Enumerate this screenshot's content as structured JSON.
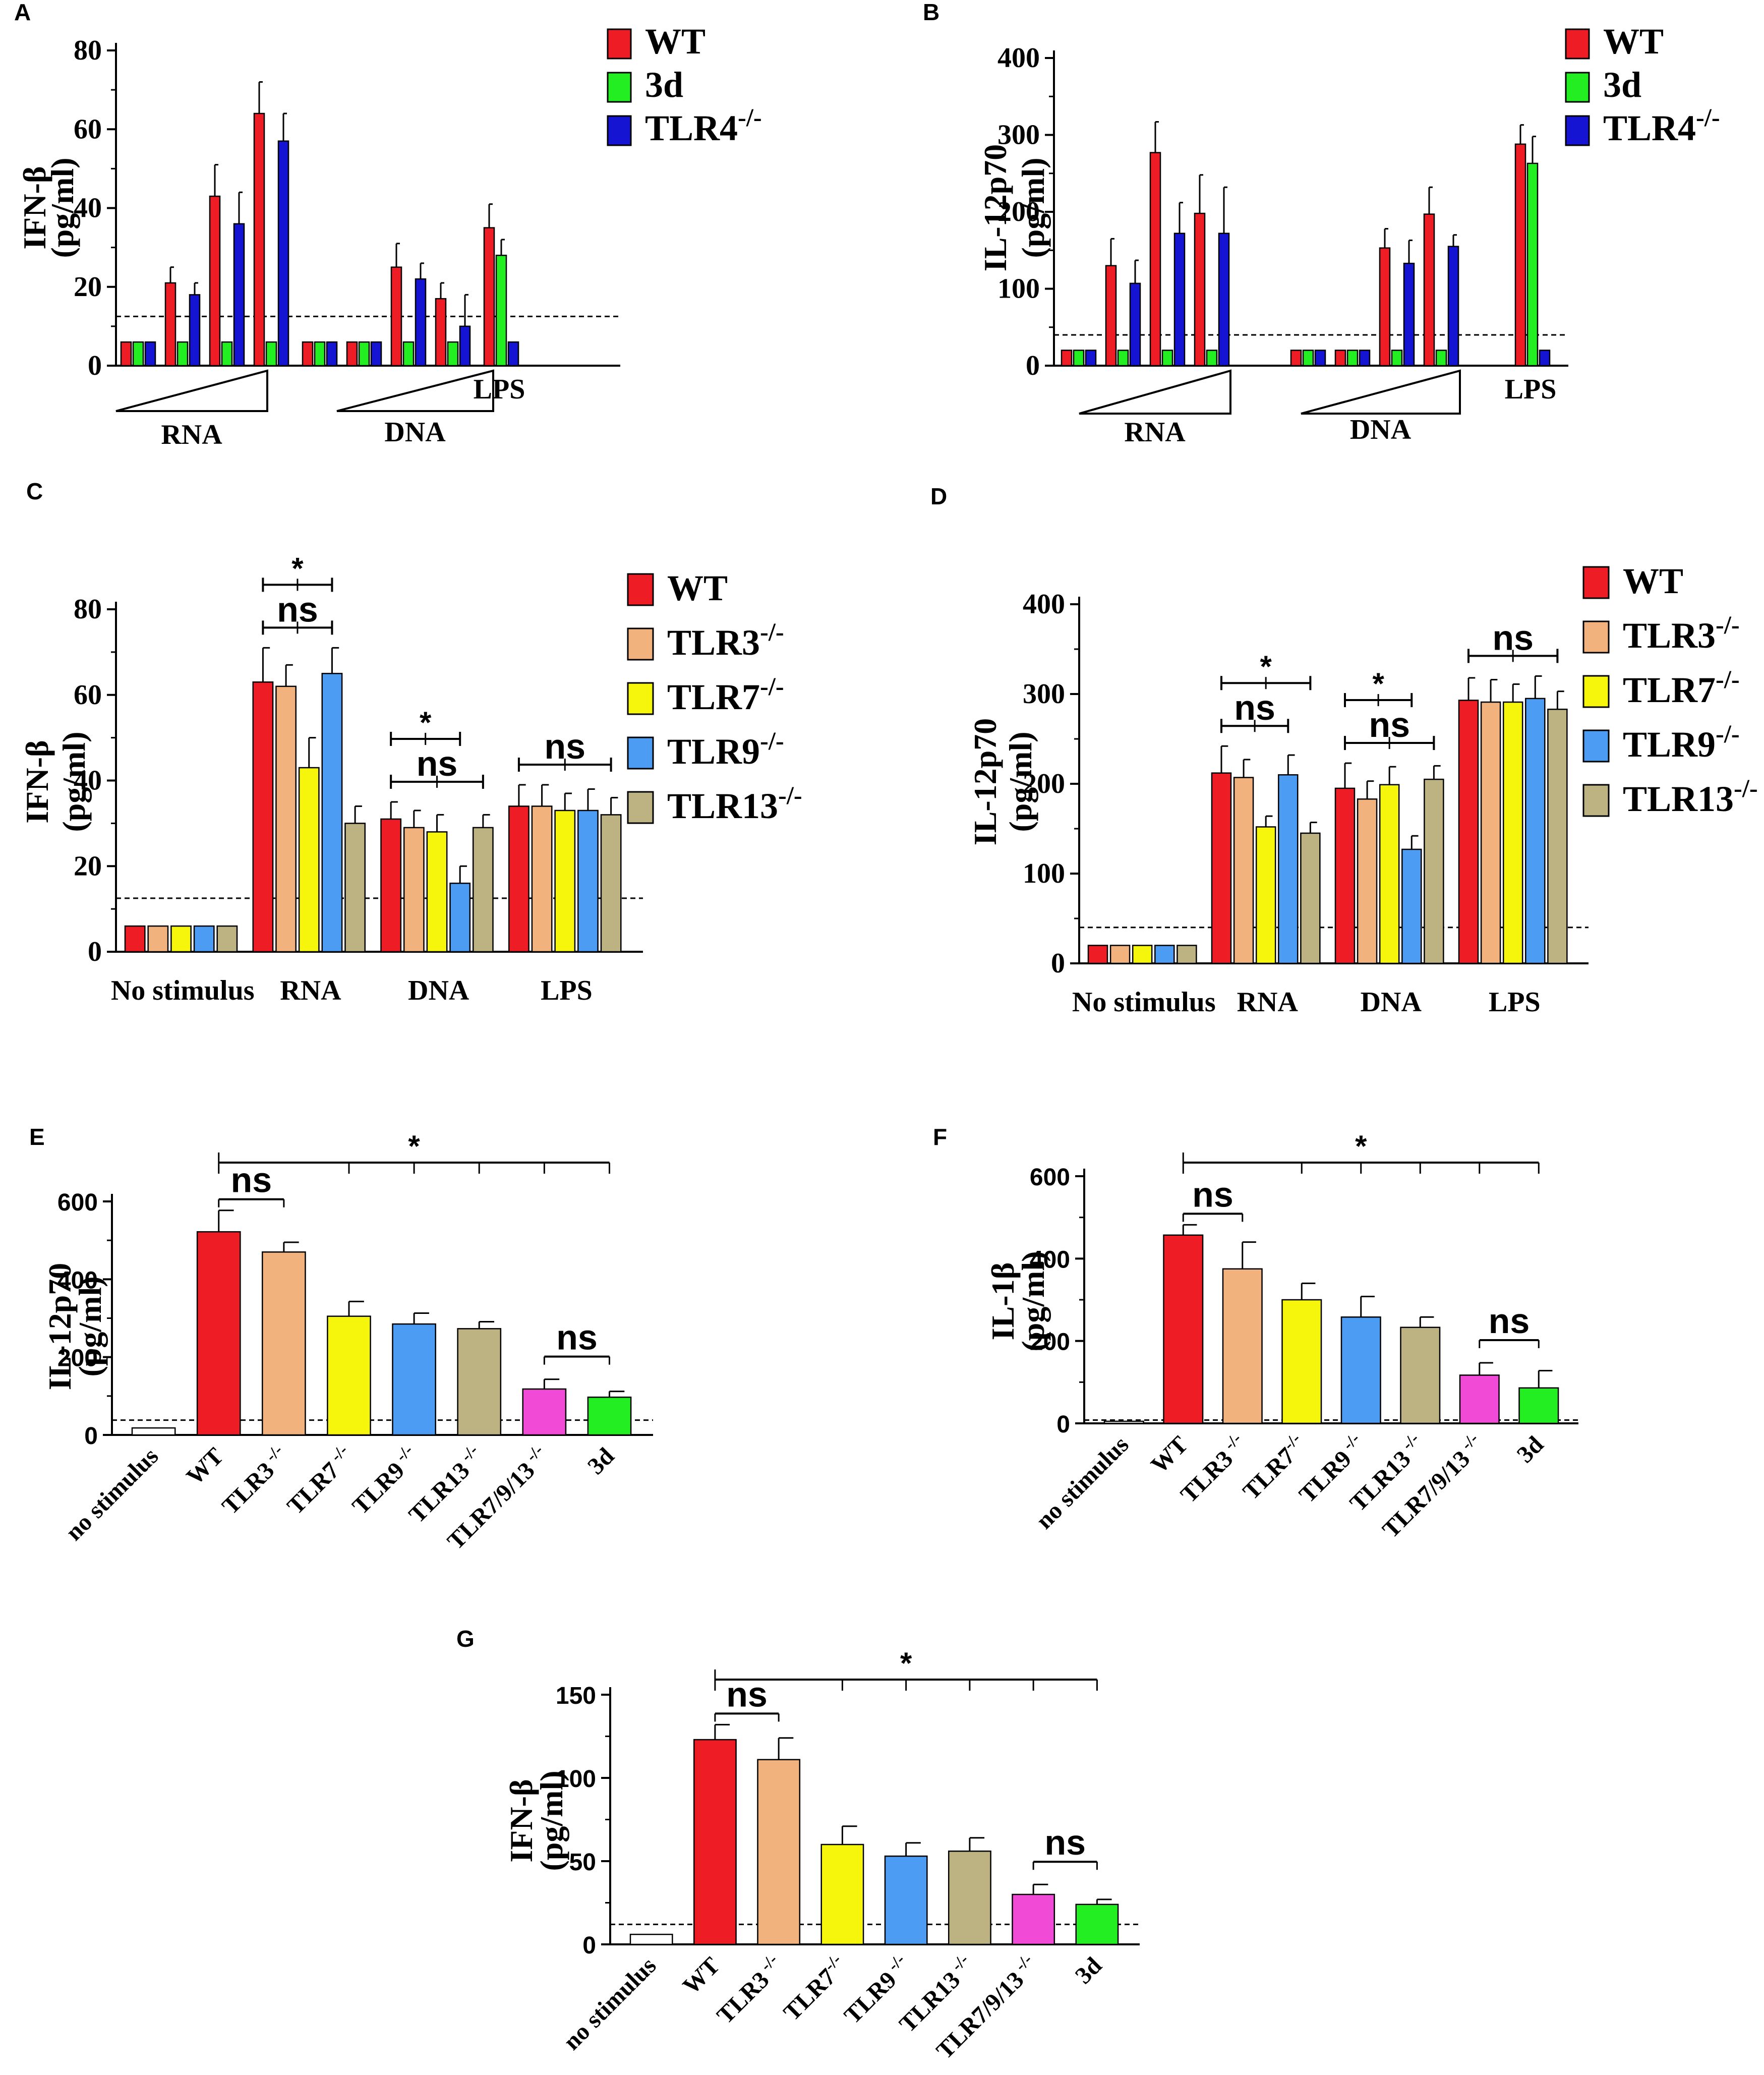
{
  "chart_data": [
    {
      "panel": "A",
      "type": "bar",
      "ylabel": [
        "IFN-β",
        "(pg/ml)"
      ],
      "ylim": [
        0,
        80
      ],
      "yticks": [
        0,
        20,
        40,
        60,
        80
      ],
      "cutoff": 12.5,
      "groups": [
        "RNA",
        "DNA",
        "LPS"
      ],
      "group_style": "triangle",
      "legend": [
        {
          "name": "WT",
          "color": "#ee1c24"
        },
        {
          "name": "3d",
          "color": "#22ee22"
        },
        {
          "name": "TLR4",
          "sup": "-/-",
          "color": "#1414d2"
        }
      ],
      "series": [
        {
          "name": "WT",
          "color": "#ee1c24",
          "values": [
            6,
            21,
            43,
            64,
            6,
            6,
            25,
            17,
            35
          ],
          "errors": [
            0,
            4,
            8,
            8,
            0,
            0,
            6,
            4,
            6
          ]
        },
        {
          "name": "3d",
          "color": "#22ee22",
          "values": [
            6,
            6,
            6,
            6,
            6,
            6,
            6,
            6,
            28
          ],
          "errors": [
            0,
            0,
            0,
            0,
            0,
            0,
            0,
            0,
            4
          ]
        },
        {
          "name": "TLR4-/-",
          "color": "#1414d2",
          "values": [
            6,
            18,
            36,
            57,
            6,
            6,
            22,
            10,
            6
          ],
          "errors": [
            0,
            3,
            8,
            7,
            0,
            0,
            4,
            8,
            0
          ]
        }
      ]
    },
    {
      "panel": "B",
      "type": "bar",
      "ylabel": [
        "IL-12p70",
        "(pg/ml)"
      ],
      "ylim": [
        0,
        400
      ],
      "yticks": [
        0,
        100,
        200,
        300,
        400
      ],
      "cutoff": 40,
      "groups": [
        "RNA",
        "DNA",
        "LPS"
      ],
      "group_style": "triangle",
      "legend": [
        {
          "name": "WT",
          "color": "#ee1c24"
        },
        {
          "name": "3d",
          "color": "#22ee22"
        },
        {
          "name": "TLR4",
          "sup": "-/-",
          "color": "#1414d2"
        }
      ],
      "series": [
        {
          "name": "WT",
          "color": "#ee1c24",
          "values": [
            20,
            130,
            277,
            198,
            20,
            20,
            153,
            197,
            288
          ],
          "errors": [
            0,
            35,
            40,
            50,
            0,
            0,
            25,
            35,
            25
          ]
        },
        {
          "name": "3d",
          "color": "#22ee22",
          "values": [
            20,
            20,
            20,
            20,
            20,
            20,
            20,
            20,
            263
          ],
          "errors": [
            0,
            0,
            0,
            0,
            0,
            0,
            0,
            0,
            35
          ]
        },
        {
          "name": "TLR4-/-",
          "color": "#1414d2",
          "values": [
            20,
            107,
            172,
            172,
            20,
            20,
            133,
            155,
            20
          ],
          "errors": [
            0,
            30,
            40,
            60,
            0,
            0,
            30,
            15,
            0
          ]
        }
      ]
    },
    {
      "panel": "C",
      "type": "bar",
      "ylabel": [
        "IFN-β",
        "(pg/ml)"
      ],
      "ylim": [
        0,
        80
      ],
      "yticks": [
        0,
        20,
        40,
        60,
        80
      ],
      "cutoff": 12.5,
      "categories": [
        "No stimulus",
        "RNA",
        "DNA",
        "LPS"
      ],
      "legend": [
        {
          "name": "WT",
          "color": "#ee1c24"
        },
        {
          "name": "TLR3",
          "sup": "-/-",
          "color": "#f2b27e"
        },
        {
          "name": "TLR7",
          "sup": "-/-",
          "color": "#f6f60c"
        },
        {
          "name": "TLR9",
          "sup": "-/-",
          "color": "#4b9cf2"
        },
        {
          "name": "TLR13",
          "sup": "-/-",
          "color": "#bcb282"
        }
      ],
      "series": [
        {
          "name": "WT",
          "color": "#ee1c24",
          "values": [
            6,
            63,
            31,
            34
          ],
          "errors": [
            0,
            8,
            4,
            5
          ]
        },
        {
          "name": "TLR3-/-",
          "color": "#f2b27e",
          "values": [
            6,
            62,
            29,
            34
          ],
          "errors": [
            0,
            5,
            4,
            5
          ]
        },
        {
          "name": "TLR7-/-",
          "color": "#f6f60c",
          "values": [
            6,
            43,
            28,
            33
          ],
          "errors": [
            0,
            7,
            4,
            4
          ]
        },
        {
          "name": "TLR9-/-",
          "color": "#4b9cf2",
          "values": [
            6,
            65,
            16,
            33
          ],
          "errors": [
            0,
            6,
            4,
            5
          ]
        },
        {
          "name": "TLR13-/-",
          "color": "#bcb282",
          "values": [
            6,
            30,
            29,
            32
          ],
          "errors": [
            0,
            4,
            3,
            4
          ]
        }
      ],
      "significance": [
        {
          "label": "*",
          "group": "RNA",
          "from": 0,
          "to": 3,
          "level": "upper"
        },
        {
          "label": "ns",
          "group": "RNA",
          "from": 0,
          "to": 3,
          "level": "lower"
        },
        {
          "label": "*",
          "group": "DNA",
          "from": 0,
          "to": 3,
          "level": "upper"
        },
        {
          "label": "ns",
          "group": "DNA",
          "from": 0,
          "to": 4,
          "level": "lower"
        },
        {
          "label": "ns",
          "group": "LPS",
          "from": 0,
          "to": 4,
          "level": "lower"
        }
      ]
    },
    {
      "panel": "D",
      "type": "bar",
      "ylabel": [
        "IL-12p70",
        "(pg/ml)"
      ],
      "ylim": [
        0,
        400
      ],
      "yticks": [
        0,
        100,
        200,
        300,
        400
      ],
      "cutoff": 40,
      "categories": [
        "No stimulus",
        "RNA",
        "DNA",
        "LPS"
      ],
      "legend": [
        {
          "name": "WT",
          "color": "#ee1c24"
        },
        {
          "name": "TLR3",
          "sup": "-/-",
          "color": "#f2b27e"
        },
        {
          "name": "TLR7",
          "sup": "-/-",
          "color": "#f6f60c"
        },
        {
          "name": "TLR9",
          "sup": "-/-",
          "color": "#4b9cf2"
        },
        {
          "name": "TLR13",
          "sup": "-/-",
          "color": "#bcb282"
        }
      ],
      "series": [
        {
          "name": "WT",
          "color": "#ee1c24",
          "values": [
            20,
            212,
            195,
            293
          ],
          "errors": [
            0,
            30,
            28,
            25
          ]
        },
        {
          "name": "TLR3-/-",
          "color": "#f2b27e",
          "values": [
            20,
            207,
            183,
            291
          ],
          "errors": [
            0,
            20,
            20,
            25
          ]
        },
        {
          "name": "TLR7-/-",
          "color": "#f6f60c",
          "values": [
            20,
            152,
            199,
            291
          ],
          "errors": [
            0,
            12,
            20,
            20
          ]
        },
        {
          "name": "TLR9-/-",
          "color": "#4b9cf2",
          "values": [
            20,
            210,
            127,
            295
          ],
          "errors": [
            0,
            22,
            15,
            25
          ]
        },
        {
          "name": "TLR13-/-",
          "color": "#bcb282",
          "values": [
            20,
            145,
            205,
            283
          ],
          "errors": [
            0,
            12,
            15,
            20
          ]
        }
      ],
      "significance": [
        {
          "label": "*",
          "group": "RNA",
          "from": 0,
          "to": 4,
          "level": "upper"
        },
        {
          "label": "ns",
          "group": "RNA",
          "from": 0,
          "to": 3,
          "level": "lower"
        },
        {
          "label": "*",
          "group": "DNA",
          "from": 0,
          "to": 3,
          "level": "upper"
        },
        {
          "label": "ns",
          "group": "DNA",
          "from": 0,
          "to": 4,
          "level": "lower"
        },
        {
          "label": "ns",
          "group": "LPS",
          "from": 0,
          "to": 4,
          "level": "lower"
        }
      ]
    },
    {
      "panel": "E",
      "type": "bar",
      "ylabel": [
        "IL-12p70",
        "(pg/ml)"
      ],
      "ylim": [
        0,
        600
      ],
      "yticks": [
        0,
        200,
        400,
        600
      ],
      "cutoff": 38,
      "categories": [
        {
          "name": "no stimulus"
        },
        {
          "name": "WT"
        },
        {
          "name": "TLR3",
          "sup": " -/-"
        },
        {
          "name": "TLR7",
          "sup": " -/-"
        },
        {
          "name": "TLR9",
          "sup": " -/-"
        },
        {
          "name": "TLR13",
          "sup": " -/-"
        },
        {
          "name": "TLR7/9/13",
          "sup": " -/-"
        },
        {
          "name": "3d"
        }
      ],
      "colors": [
        "#ffffff",
        "#ee1c24",
        "#f2b27e",
        "#f6f60c",
        "#4b9cf2",
        "#bcb282",
        "#f04ad6",
        "#22ee22"
      ],
      "values": [
        18,
        522,
        470,
        305,
        285,
        273,
        118,
        97
      ],
      "errors": [
        0,
        55,
        25,
        38,
        28,
        18,
        25,
        15
      ],
      "significance": [
        {
          "label": "*",
          "from": 1,
          "to": 7,
          "ticks": [
            1,
            3,
            4,
            5,
            6,
            7
          ],
          "level": "top"
        },
        {
          "label": "ns",
          "from": 1,
          "to": 2,
          "level": "mid"
        },
        {
          "label": "ns",
          "from": 6,
          "to": 7,
          "level": "low"
        }
      ]
    },
    {
      "panel": "F",
      "type": "bar",
      "ylabel": [
        "IL-1β",
        "(pg/ml)"
      ],
      "ylim": [
        0,
        600
      ],
      "yticks": [
        0,
        200,
        400,
        600
      ],
      "cutoff": 8,
      "categories": [
        {
          "name": "no stimulus"
        },
        {
          "name": "WT"
        },
        {
          "name": "TLR3",
          "sup": " -/-"
        },
        {
          "name": "TLR7",
          "sup": "-/-"
        },
        {
          "name": "TLR9",
          "sup": " -/-"
        },
        {
          "name": "TLR13",
          "sup": " -/-"
        },
        {
          "name": "TLR7/9/13",
          "sup": " -/-"
        },
        {
          "name": "3d"
        }
      ],
      "colors": [
        "#ffffff",
        "#ee1c24",
        "#f2b27e",
        "#f6f60c",
        "#4b9cf2",
        "#bcb282",
        "#f04ad6",
        "#22ee22"
      ],
      "values": [
        5,
        457,
        375,
        300,
        258,
        233,
        117,
        86
      ],
      "errors": [
        0,
        25,
        65,
        40,
        50,
        25,
        30,
        42
      ],
      "significance": [
        {
          "label": "*",
          "from": 1,
          "to": 7,
          "ticks": [
            1,
            3,
            4,
            5,
            6,
            7
          ],
          "level": "top"
        },
        {
          "label": "ns",
          "from": 1,
          "to": 2,
          "level": "mid"
        },
        {
          "label": "ns",
          "from": 6,
          "to": 7,
          "level": "low"
        }
      ]
    },
    {
      "panel": "G",
      "type": "bar",
      "ylabel": [
        "IFN-β",
        "(pg/ml)"
      ],
      "ylim": [
        0,
        150
      ],
      "yticks": [
        0,
        50,
        100,
        150
      ],
      "cutoff": 12,
      "categories": [
        {
          "name": "no stimulus"
        },
        {
          "name": "WT"
        },
        {
          "name": "TLR3",
          "sup": " -/-"
        },
        {
          "name": "TLR7",
          "sup": "-/-"
        },
        {
          "name": "TLR9",
          "sup": " -/-"
        },
        {
          "name": "TLR13",
          "sup": " -/-"
        },
        {
          "name": "TLR7/9/13",
          "sup": " -/-"
        },
        {
          "name": "3d"
        }
      ],
      "colors": [
        "#ffffff",
        "#ee1c24",
        "#f2b27e",
        "#f6f60c",
        "#4b9cf2",
        "#bcb282",
        "#f04ad6",
        "#22ee22"
      ],
      "values": [
        6,
        123,
        111,
        60,
        53,
        56,
        30,
        24
      ],
      "errors": [
        0,
        9,
        13,
        11,
        8,
        8,
        6,
        3
      ],
      "significance": [
        {
          "label": "*",
          "from": 1,
          "to": 7,
          "ticks": [
            1,
            3,
            4,
            5,
            6,
            7
          ],
          "level": "top"
        },
        {
          "label": "ns",
          "from": 1,
          "to": 2,
          "level": "mid"
        },
        {
          "label": "ns",
          "from": 6,
          "to": 7,
          "level": "low"
        }
      ]
    }
  ]
}
